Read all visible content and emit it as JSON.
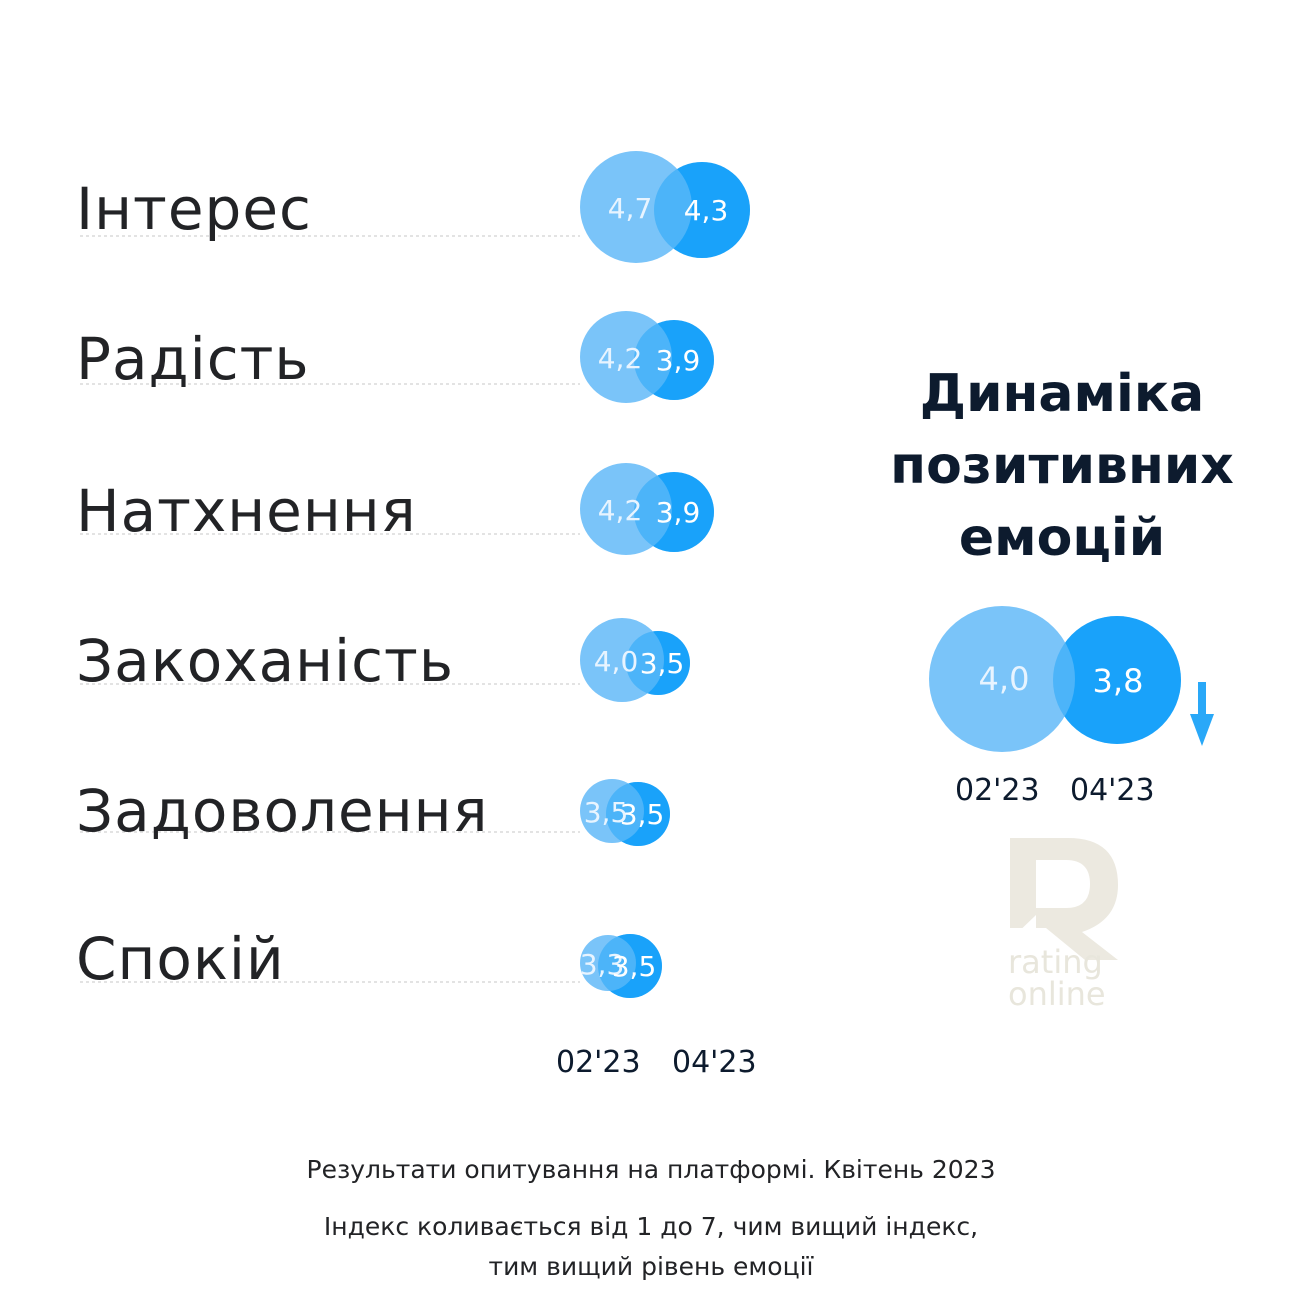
{
  "chart_data": [
    {
      "type": "bubble",
      "categories": [
        "Інтерес",
        "Радість",
        "Натхнення",
        "Закоханість",
        "Задоволення",
        "Спокій"
      ],
      "series": [
        {
          "name": "02'23",
          "values": [
            4.7,
            4.2,
            4.2,
            4.0,
            3.5,
            3.3
          ],
          "color": "#6fbff9"
        },
        {
          "name": "04'23",
          "values": [
            4.3,
            3.9,
            3.9,
            3.5,
            3.5,
            3.5
          ],
          "color": "#1aa2fa"
        }
      ],
      "value_labels": {
        "s0": [
          "4,7",
          "4,2",
          "4,2",
          "4,0",
          "3,5",
          "3,3"
        ],
        "s1": [
          "4,3",
          "3,9",
          "3,9",
          "3,5",
          "3,5",
          "3,5"
        ]
      },
      "x_labels": [
        "02'23",
        "04'23"
      ]
    },
    {
      "type": "bubble",
      "title_lines": [
        "Динаміка",
        "позитивних",
        "емоцій"
      ],
      "series": [
        {
          "name": "02'23",
          "values": [
            4.0
          ],
          "label": "4,0",
          "color": "#6fbff9"
        },
        {
          "name": "04'23",
          "values": [
            3.8
          ],
          "label": "3,8",
          "color": "#1aa2fa"
        }
      ],
      "trend": "down",
      "x_labels": [
        "02'23",
        "04'23"
      ]
    }
  ],
  "footer": {
    "line1": "Результати опитування на платформі. Квітень 2023",
    "line2": "Індекс коливається від 1 до 7, чим вищий індекс,",
    "line3": "тим вищий рівень емоції"
  },
  "logo": {
    "line1": "rating",
    "line2": "online"
  },
  "colors": {
    "light": "#6fbff9",
    "dark": "#1aa2fa",
    "text": "#0d1b2e",
    "logo": "#e8e6dc"
  }
}
